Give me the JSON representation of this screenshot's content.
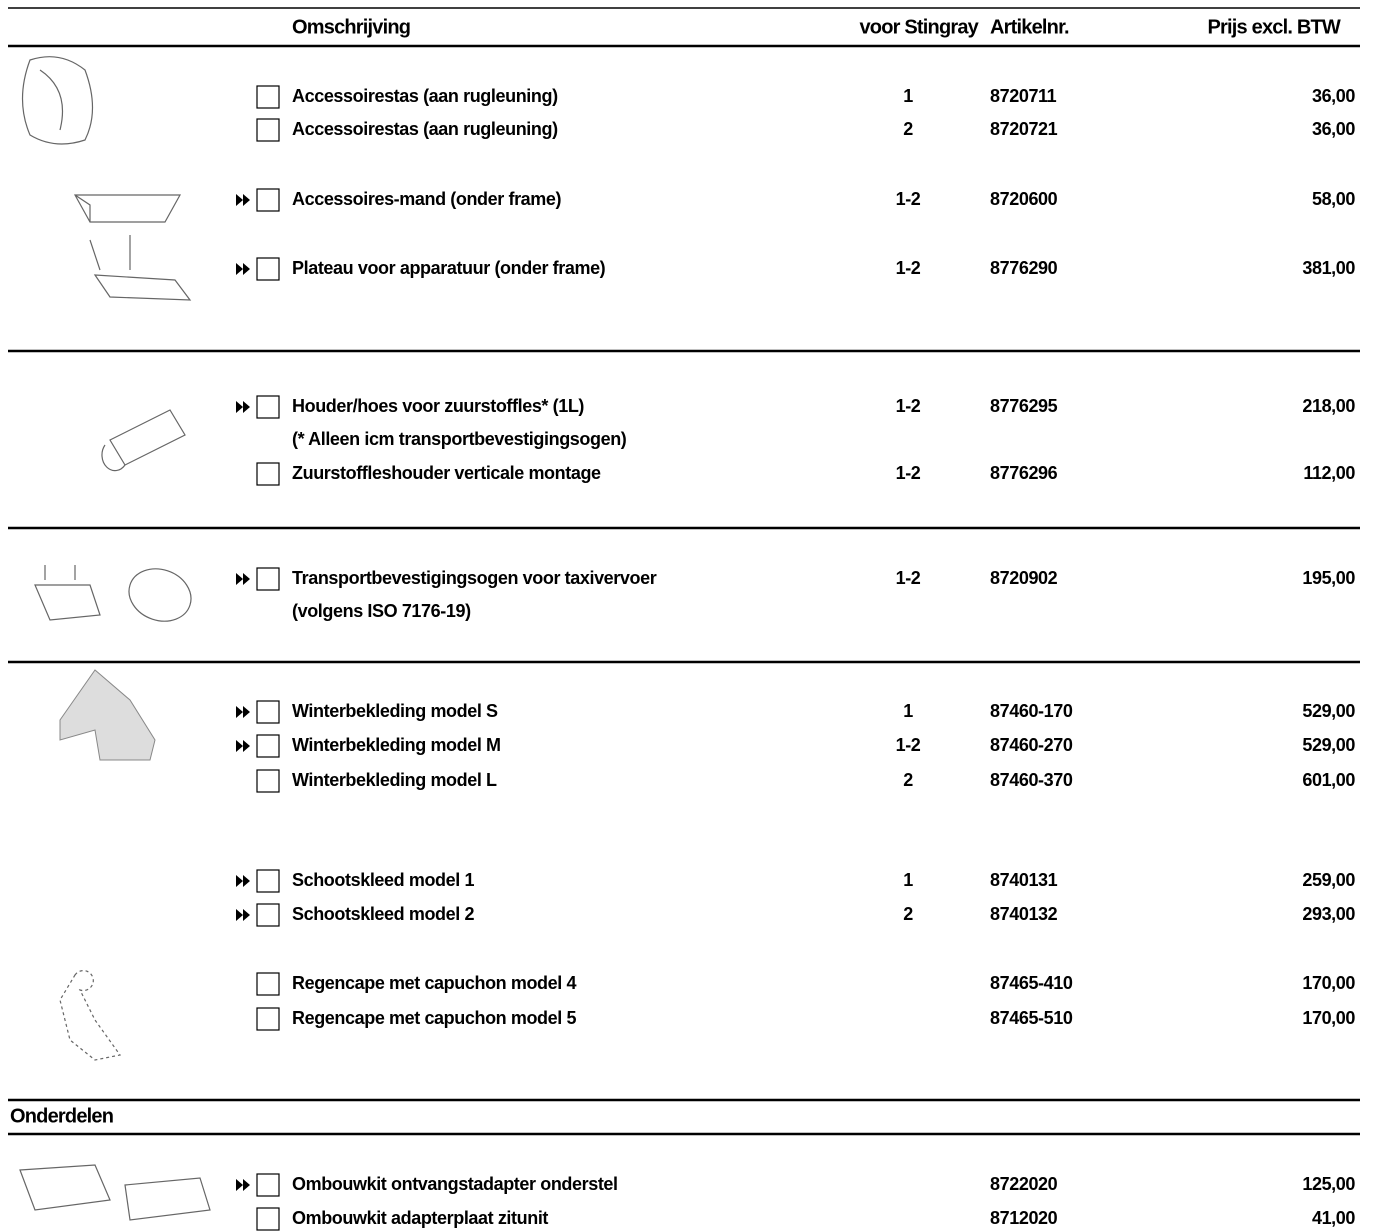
{
  "header": {
    "description": "Omschrijving",
    "variant": "voor Stingray",
    "article": "Artikelnr.",
    "price": "Prijs excl. BTW"
  },
  "rows": [
    {
      "description": "Accessoirestas (aan rugleuning)",
      "variant": "1",
      "article": "8720711",
      "price": "36,00",
      "arrow": false,
      "checkbox": true
    },
    {
      "description": "Accessoirestas (aan rugleuning)",
      "variant": "2",
      "article": "8720721",
      "price": "36,00",
      "arrow": false,
      "checkbox": true
    },
    {
      "description": "Accessoires-mand (onder frame)",
      "variant": "1-2",
      "article": "8720600",
      "price": "58,00",
      "arrow": true,
      "checkbox": true
    },
    {
      "description": "Plateau voor apparatuur (onder frame)",
      "variant": "1-2",
      "article": "8776290",
      "price": "381,00",
      "arrow": true,
      "checkbox": true
    },
    {
      "description": "Houder/hoes voor zuurstoffles* (1L)",
      "variant": "1-2",
      "article": "8776295",
      "price": "218,00",
      "arrow": true,
      "checkbox": true
    },
    {
      "description": "(* Alleen icm transportbevestigingsogen)",
      "arrow": false,
      "checkbox": false
    },
    {
      "description": "Zuurstoffleshouder  verticale montage",
      "variant": "1-2",
      "article": "8776296",
      "price": "112,00",
      "arrow": false,
      "checkbox": true
    },
    {
      "description": "Transportbevestigingsogen voor taxivervoer",
      "variant": "1-2",
      "article": "8720902",
      "price": "195,00",
      "arrow": true,
      "checkbox": true
    },
    {
      "description": "(volgens ISO 7176-19)",
      "arrow": false,
      "checkbox": false
    },
    {
      "description": "Winterbekleding model S",
      "variant": "1",
      "article": "87460-170",
      "price": "529,00",
      "arrow": true,
      "checkbox": true
    },
    {
      "description": "Winterbekleding model M",
      "variant": "1-2",
      "article": "87460-270",
      "price": "529,00",
      "arrow": true,
      "checkbox": true
    },
    {
      "description": "Winterbekleding model L",
      "variant": "2",
      "article": "87460-370",
      "price": "601,00",
      "arrow": false,
      "checkbox": true
    },
    {
      "description": "Schootskleed model 1",
      "variant": "1",
      "article": "8740131",
      "price": "259,00",
      "arrow": true,
      "checkbox": true
    },
    {
      "description": "Schootskleed model 2",
      "variant": "2",
      "article": "8740132",
      "price": "293,00",
      "arrow": true,
      "checkbox": true
    },
    {
      "description": "Regencape met capuchon model 4",
      "article": "87465-410",
      "price": "170,00",
      "arrow": false,
      "checkbox": true
    },
    {
      "description": "Regencape met capuchon model 5",
      "article": "87465-510",
      "price": "170,00",
      "arrow": false,
      "checkbox": true
    },
    {
      "description": "Ombouwkit ontvangstadapter onderstel",
      "article": "8722020",
      "price": "125,00",
      "arrow": true,
      "checkbox": true
    },
    {
      "description": "Ombouwkit adapterplaat  zitunit",
      "article": "8712020",
      "price": "41,00",
      "arrow": false,
      "checkbox": true
    }
  ],
  "section": "Onderdelen"
}
